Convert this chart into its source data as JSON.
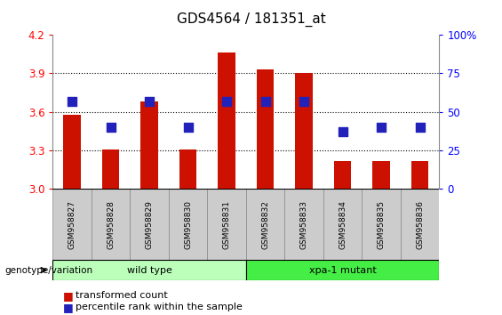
{
  "title": "GDS4564 / 181351_at",
  "samples": [
    "GSM958827",
    "GSM958828",
    "GSM958829",
    "GSM958830",
    "GSM958831",
    "GSM958832",
    "GSM958833",
    "GSM958834",
    "GSM958835",
    "GSM958836"
  ],
  "transformed_counts": [
    3.58,
    3.31,
    3.68,
    3.31,
    4.06,
    3.93,
    3.9,
    3.22,
    3.22,
    3.22
  ],
  "percentile_ranks": [
    57,
    40,
    57,
    40,
    57,
    57,
    57,
    37,
    40,
    40
  ],
  "groups": [
    {
      "label": "wild type",
      "start": 0,
      "end": 5,
      "color": "#bbffbb"
    },
    {
      "label": "xpa-1 mutant",
      "start": 5,
      "end": 10,
      "color": "#44ee44"
    }
  ],
  "ylim_left": [
    3.0,
    4.2
  ],
  "ylim_right": [
    0,
    100
  ],
  "yticks_left": [
    3.0,
    3.3,
    3.6,
    3.9,
    4.2
  ],
  "yticks_right": [
    0,
    25,
    50,
    75,
    100
  ],
  "ytick_right_labels": [
    "0",
    "25",
    "50",
    "75",
    "100%"
  ],
  "bar_color": "#cc1100",
  "dot_color": "#2222bb",
  "bar_width": 0.45,
  "dot_size": 45,
  "legend_tc": "transformed count",
  "legend_pr": "percentile rank within the sample",
  "genotype_label": "genotype/variation",
  "background_color": "#ffffff",
  "grid_dotted_at": [
    3.3,
    3.6,
    3.9
  ],
  "sample_box_color": "#cccccc",
  "sample_box_edge": "#888888",
  "title_fontsize": 11,
  "tick_fontsize": 8.5,
  "sample_fontsize": 6.5,
  "group_fontsize": 8,
  "legend_fontsize": 8
}
